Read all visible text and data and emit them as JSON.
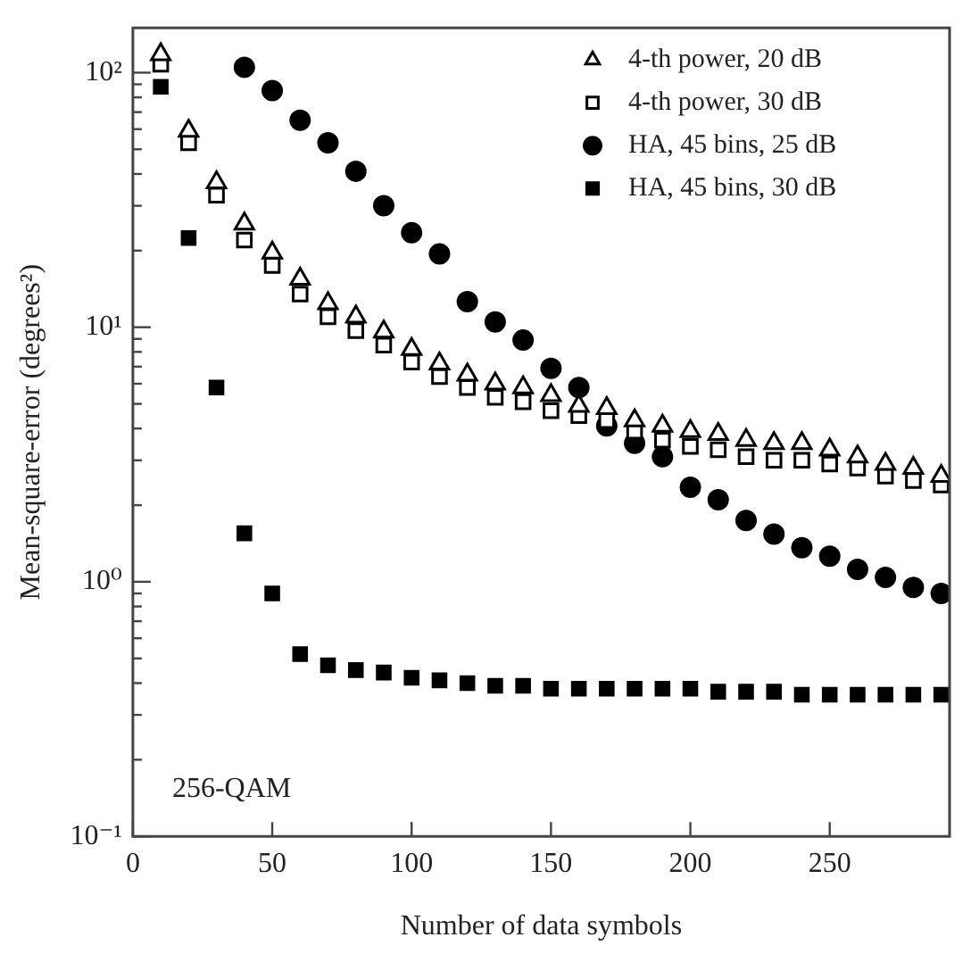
{
  "chart_data": {
    "type": "scatter",
    "xlabel": "Number of data symbols",
    "ylabel": "Mean-square-error (degrees²)",
    "log": "y",
    "grid": false,
    "legend": "top right",
    "xlim": [
      0,
      293
    ],
    "xticks": [
      0,
      50,
      100,
      150,
      200,
      250
    ],
    "ylim": [
      0.1,
      150
    ],
    "yticks": [
      {
        "value": 0.1,
        "label": "10⁻¹"
      },
      {
        "value": 1,
        "label": "10⁰"
      },
      {
        "value": 10,
        "label": "10¹"
      },
      {
        "value": 100,
        "label": "10²"
      }
    ],
    "annotations": [
      "256-QAM"
    ],
    "series": [
      {
        "name": "4-th power, 20 dB",
        "color": "#000000",
        "marker": "triangle",
        "x": [
          10,
          20,
          30,
          40,
          50,
          60,
          70,
          80,
          90,
          100,
          110,
          120,
          130,
          140,
          150,
          160,
          170,
          180,
          190,
          200,
          210,
          220,
          230,
          240,
          250,
          260,
          270,
          280,
          290
        ],
        "values": [
          118,
          59,
          37,
          25.5,
          19.6,
          15.5,
          12.4,
          11,
          9.6,
          8.2,
          7.2,
          6.5,
          6,
          5.8,
          5.4,
          4.9,
          4.8,
          4.3,
          4.1,
          3.9,
          3.8,
          3.6,
          3.5,
          3.5,
          3.3,
          3.1,
          2.9,
          2.8,
          2.6
        ]
      },
      {
        "name": "4-th power, 30 dB",
        "color": "#000000",
        "marker": "square",
        "x": [
          10,
          20,
          30,
          40,
          50,
          60,
          70,
          80,
          90,
          100,
          110,
          120,
          130,
          140,
          150,
          160,
          170,
          180,
          190,
          200,
          210,
          220,
          230,
          240,
          250,
          260,
          270,
          280,
          290
        ],
        "values": [
          108,
          53,
          33,
          22,
          17.5,
          13.5,
          11,
          9.7,
          8.5,
          7.3,
          6.4,
          5.8,
          5.3,
          5.1,
          4.7,
          4.5,
          4.3,
          3.9,
          3.6,
          3.4,
          3.3,
          3.1,
          3,
          3,
          2.9,
          2.8,
          2.6,
          2.5,
          2.4
        ]
      },
      {
        "name": "HA, 45 bins, 25 dB",
        "color": "#000000",
        "marker": "circle",
        "x": [
          40,
          50,
          60,
          70,
          80,
          90,
          100,
          110,
          120,
          130,
          140,
          150,
          160,
          170,
          180,
          190,
          200,
          210,
          220,
          230,
          240,
          250,
          260,
          270,
          280,
          290
        ],
        "values": [
          105,
          85,
          65,
          53,
          41,
          30,
          23.5,
          19.4,
          12.6,
          10.5,
          8.9,
          6.9,
          5.8,
          4.1,
          3.5,
          3.1,
          2.35,
          2.1,
          1.74,
          1.54,
          1.36,
          1.26,
          1.12,
          1.04,
          0.95,
          0.9
        ]
      },
      {
        "name": "HA, 45 bins, 30 dB",
        "color": "#000000",
        "marker": "square",
        "x": [
          10,
          20,
          30,
          40,
          50,
          60,
          70,
          80,
          90,
          100,
          110,
          120,
          130,
          140,
          150,
          160,
          170,
          180,
          190,
          200,
          210,
          220,
          230,
          240,
          250,
          260,
          270,
          280,
          290
        ],
        "values": [
          88,
          22.4,
          5.8,
          1.55,
          0.9,
          0.52,
          0.47,
          0.45,
          0.44,
          0.42,
          0.41,
          0.4,
          0.39,
          0.39,
          0.38,
          0.38,
          0.38,
          0.38,
          0.38,
          0.38,
          0.37,
          0.37,
          0.37,
          0.36,
          0.36,
          0.36,
          0.36,
          0.36,
          0.36
        ]
      }
    ]
  }
}
